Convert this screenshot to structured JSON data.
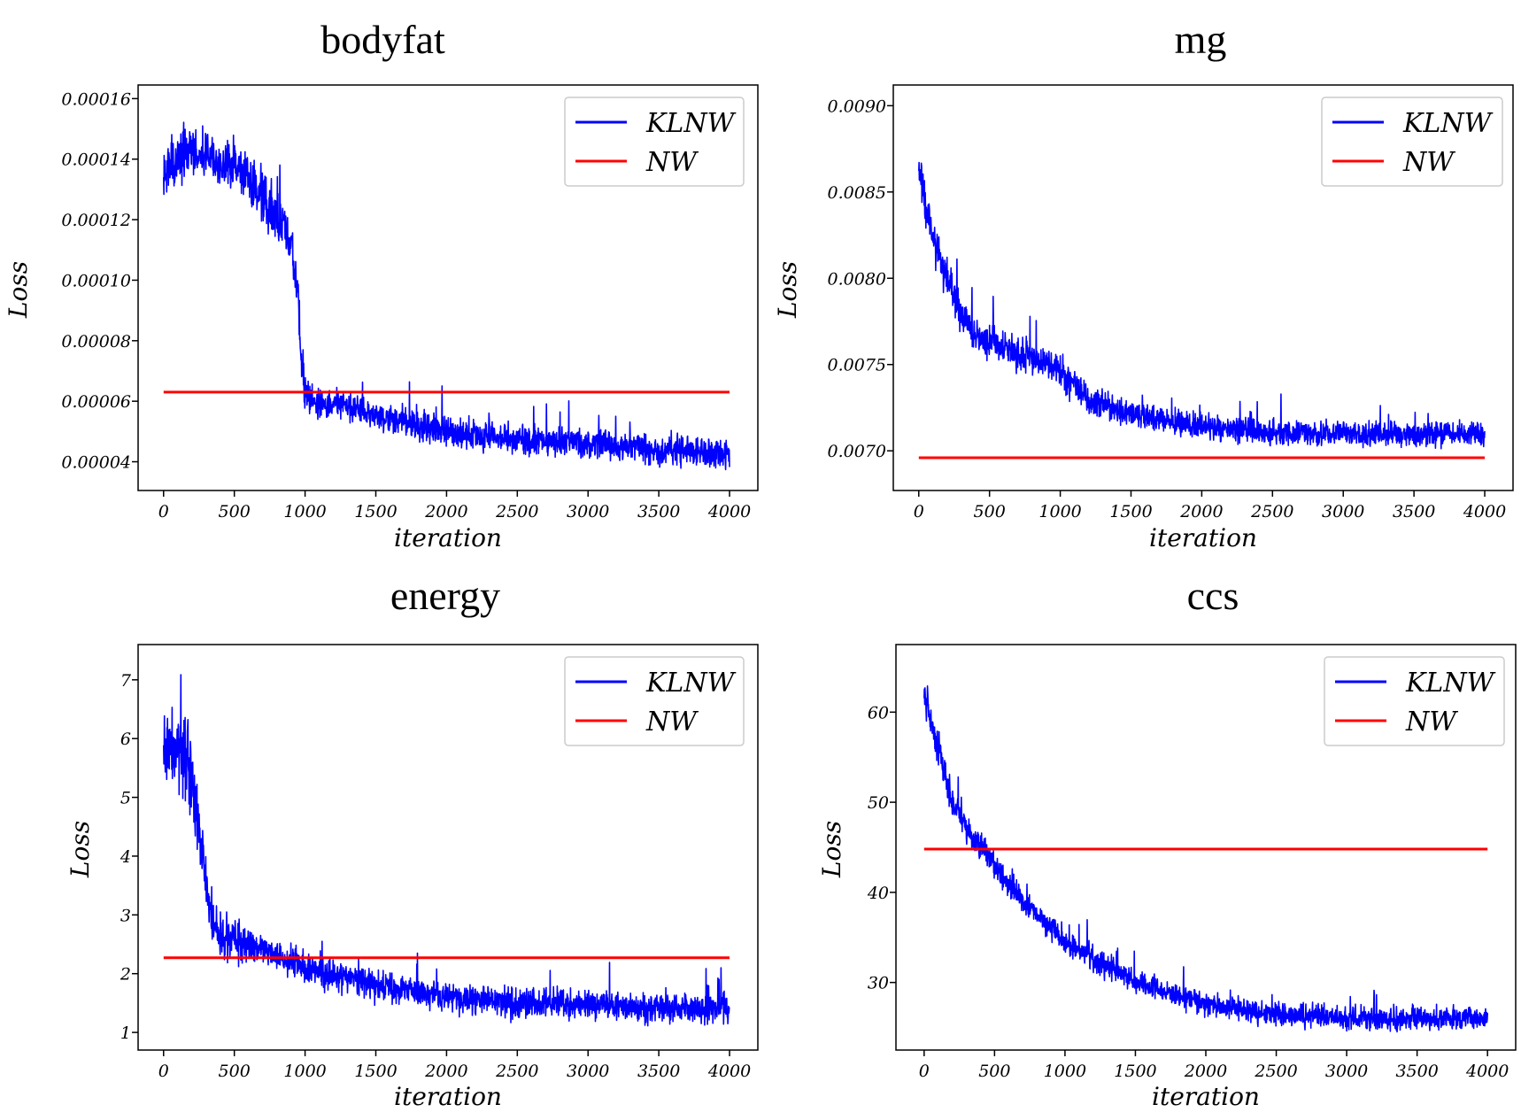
{
  "chart_data": [
    {
      "type": "line",
      "title": "bodyfat",
      "xlabel": "iteration",
      "ylabel": "Loss",
      "xlim": [
        -180,
        4200
      ],
      "ylim": [
        3.05e-05,
        0.0001645
      ],
      "xticks": [
        0,
        500,
        1000,
        1500,
        2000,
        2500,
        3000,
        3500,
        4000
      ],
      "xtick_labels": [
        "0",
        "500",
        "1000",
        "1500",
        "2000",
        "2500",
        "3000",
        "3500",
        "4000"
      ],
      "yticks": [
        4e-05,
        6e-05,
        8e-05,
        0.0001,
        0.00012,
        0.00014,
        0.00016
      ],
      "ytick_labels": [
        "0.00004",
        "0.00006",
        "0.00008",
        "0.00010",
        "0.00012",
        "0.00014",
        "0.00016"
      ],
      "legend_position": "top-right",
      "series": [
        {
          "name": "KLNW",
          "color": "#0000ff",
          "style": "noisy-line",
          "x": [
            0,
            100,
            200,
            300,
            400,
            500,
            600,
            700,
            800,
            900,
            950,
            980,
            1000,
            1100,
            1200,
            1500,
            2000,
            2500,
            3000,
            3500,
            4000
          ],
          "y": [
            0.000135,
            0.00014,
            0.000142,
            0.000142,
            0.00014,
            0.000137,
            0.000132,
            0.000127,
            0.000121,
            0.000112,
            9.5e-05,
            7e-05,
            6.2e-05,
            6e-05,
            5.9e-05,
            5.5e-05,
            5e-05,
            4.7e-05,
            4.6e-05,
            4.4e-05,
            4.3e-05
          ],
          "noise": [
            6e-06,
            6e-06,
            6e-06,
            6e-06,
            6e-06,
            6e-06,
            6e-06,
            6e-06,
            6e-06,
            6e-06,
            6e-06,
            6e-06,
            4e-06,
            3.5e-06,
            3.5e-06,
            3.5e-06,
            3.5e-06,
            3.5e-06,
            3.5e-06,
            3.5e-06,
            3.5e-06
          ]
        },
        {
          "name": "NW",
          "color": "#ff0000",
          "style": "line",
          "x": [
            0,
            4000
          ],
          "y": [
            6.3e-05,
            6.3e-05
          ]
        }
      ]
    },
    {
      "type": "line",
      "title": "mg",
      "xlabel": "iteration",
      "ylabel": "Loss",
      "xlim": [
        -180,
        4200
      ],
      "ylim": [
        0.00677,
        0.00912
      ],
      "xticks": [
        0,
        500,
        1000,
        1500,
        2000,
        2500,
        3000,
        3500,
        4000
      ],
      "xtick_labels": [
        "0",
        "500",
        "1000",
        "1500",
        "2000",
        "2500",
        "3000",
        "3500",
        "4000"
      ],
      "yticks": [
        0.007,
        0.0075,
        0.008,
        0.0085,
        0.009
      ],
      "ytick_labels": [
        "0.0070",
        "0.0075",
        "0.0080",
        "0.0085",
        "0.0090"
      ],
      "legend_position": "top-right",
      "series": [
        {
          "name": "KLNW",
          "color": "#0000ff",
          "style": "noisy-line",
          "x": [
            0,
            50,
            100,
            200,
            300,
            400,
            500,
            600,
            700,
            800,
            900,
            1000,
            1100,
            1200,
            1500,
            2000,
            2500,
            3000,
            3500,
            4000
          ],
          "y": [
            0.0087,
            0.0084,
            0.00823,
            0.008,
            0.0078,
            0.00766,
            0.00762,
            0.0076,
            0.00757,
            0.00754,
            0.0075,
            0.00745,
            0.00738,
            0.0073,
            0.00721,
            0.00714,
            0.00711,
            0.0071,
            0.0071,
            0.0071
          ],
          "noise": [
            0.00012,
            0.0001,
            9e-05,
            8e-05,
            7e-05,
            7e-05,
            7e-05,
            7e-05,
            7e-05,
            7e-05,
            7e-05,
            7e-05,
            6e-05,
            6e-05,
            5e-05,
            5e-05,
            5e-05,
            5e-05,
            5e-05,
            5e-05
          ]
        },
        {
          "name": "NW",
          "color": "#ff0000",
          "style": "line",
          "x": [
            0,
            4000
          ],
          "y": [
            0.00696,
            0.00696
          ]
        }
      ]
    },
    {
      "type": "line",
      "title": "energy",
      "xlabel": "iteration",
      "ylabel": "Loss",
      "xlim": [
        -180,
        4200
      ],
      "ylim": [
        0.7,
        7.6
      ],
      "xticks": [
        0,
        500,
        1000,
        1500,
        2000,
        2500,
        3000,
        3500,
        4000
      ],
      "xtick_labels": [
        "0",
        "500",
        "1000",
        "1500",
        "2000",
        "2500",
        "3000",
        "3500",
        "4000"
      ],
      "yticks": [
        1,
        2,
        3,
        4,
        5,
        6,
        7
      ],
      "ytick_labels": [
        "1",
        "2",
        "3",
        "4",
        "5",
        "6",
        "7"
      ],
      "legend_position": "top-right",
      "series": [
        {
          "name": "KLNW",
          "color": "#0000ff",
          "style": "noisy-line",
          "x": [
            0,
            100,
            200,
            250,
            300,
            350,
            400,
            500,
            700,
            1000,
            1500,
            2000,
            2500,
            3000,
            3500,
            4000
          ],
          "y": [
            5.8,
            5.9,
            5.4,
            4.6,
            3.6,
            2.9,
            2.65,
            2.55,
            2.4,
            2.1,
            1.8,
            1.6,
            1.5,
            1.45,
            1.4,
            1.4
          ],
          "noise": [
            0.45,
            0.45,
            0.45,
            0.4,
            0.35,
            0.3,
            0.25,
            0.25,
            0.2,
            0.2,
            0.18,
            0.18,
            0.18,
            0.18,
            0.18,
            0.18
          ]
        },
        {
          "name": "NW",
          "color": "#ff0000",
          "style": "line",
          "x": [
            0,
            4000
          ],
          "y": [
            2.27,
            2.27
          ]
        }
      ]
    },
    {
      "type": "line",
      "title": "ccs",
      "xlabel": "iteration",
      "ylabel": "Loss",
      "xlim": [
        -200,
        4200
      ],
      "ylim": [
        22.5,
        67.5
      ],
      "xticks": [
        0,
        500,
        1000,
        1500,
        2000,
        2500,
        3000,
        3500,
        4000
      ],
      "xtick_labels": [
        "0",
        "500",
        "1000",
        "1500",
        "2000",
        "2500",
        "3000",
        "3500",
        "4000"
      ],
      "yticks": [
        30,
        40,
        50,
        60
      ],
      "ytick_labels": [
        "30",
        "40",
        "50",
        "60"
      ],
      "legend_position": "top-right",
      "series": [
        {
          "name": "KLNW",
          "color": "#0000ff",
          "style": "noisy-line",
          "x": [
            0,
            100,
            200,
            300,
            400,
            500,
            700,
            1000,
            1500,
            2000,
            2500,
            3000,
            3500,
            4000
          ],
          "y": [
            62,
            56,
            50,
            47,
            45,
            43,
            39,
            34.5,
            30,
            27.5,
            26.5,
            26,
            26,
            26
          ],
          "noise": [
            1.5,
            1.3,
            1.2,
            1.1,
            1.1,
            1,
            1,
            1,
            0.9,
            0.9,
            0.9,
            0.9,
            0.9,
            0.9
          ]
        },
        {
          "name": "NW",
          "color": "#ff0000",
          "style": "line",
          "x": [
            0,
            4000
          ],
          "y": [
            44.8,
            44.8
          ]
        }
      ]
    }
  ]
}
